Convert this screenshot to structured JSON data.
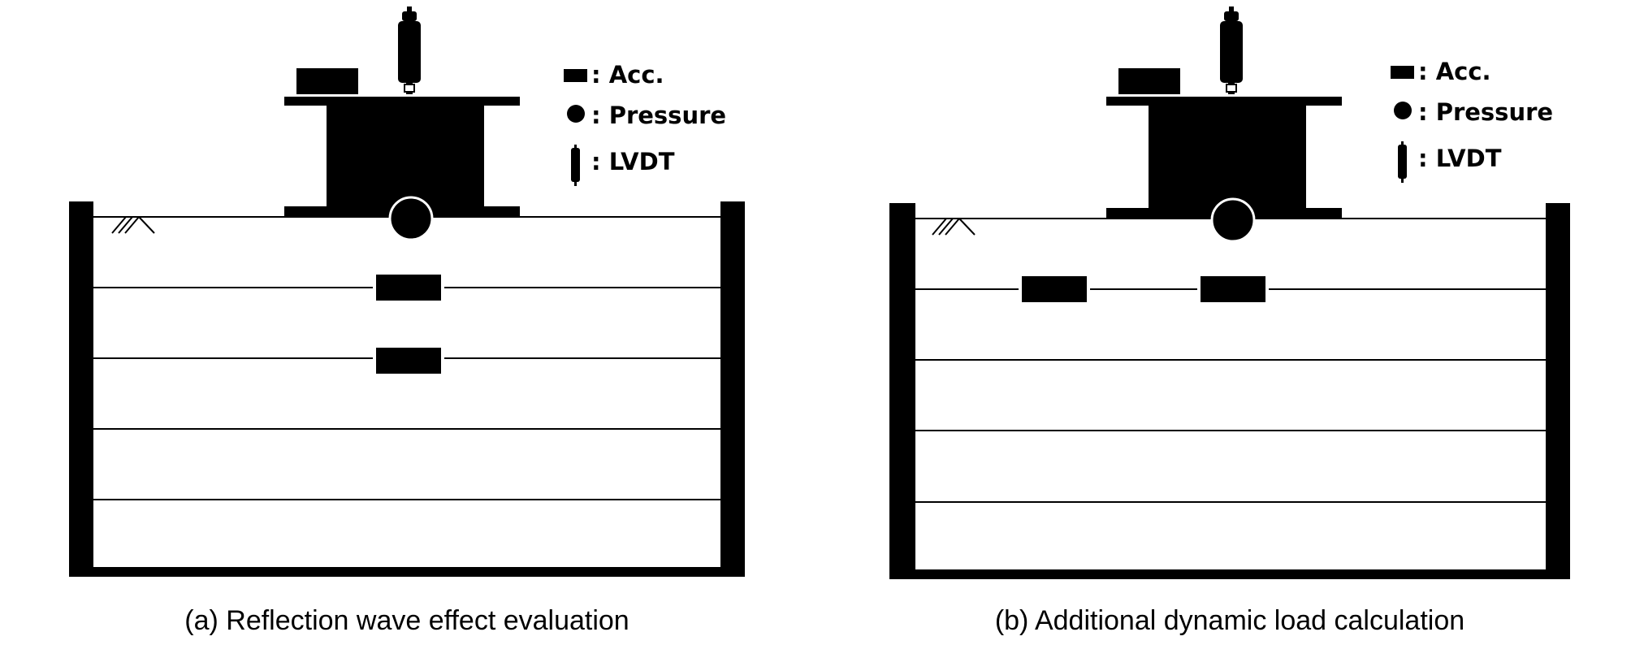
{
  "legend": {
    "acc": ": Acc.",
    "pressure": ": Pressure",
    "lvdt": ": LVDT"
  },
  "panels": [
    {
      "caption": "(a) Reflection wave effect evaluation"
    },
    {
      "caption": "(b) Additional dynamic load calculation"
    }
  ]
}
